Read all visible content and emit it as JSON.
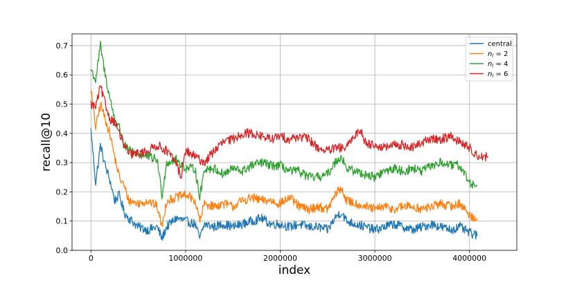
{
  "chart_data": {
    "type": "line",
    "title": "",
    "xlabel": "index",
    "ylabel": "recall@10",
    "xlim": [
      -200000,
      4500000
    ],
    "ylim": [
      0.0,
      0.74
    ],
    "xticks": [
      0,
      1000000,
      2000000,
      3000000,
      4000000
    ],
    "xtick_labels": [
      "0",
      "1000000",
      "2000000",
      "3000000",
      "4000000"
    ],
    "yticks": [
      0.0,
      0.1,
      0.2,
      0.3,
      0.4,
      0.5,
      0.6,
      0.7
    ],
    "ytick_labels": [
      "0.0",
      "0.1",
      "0.2",
      "0.3",
      "0.4",
      "0.5",
      "0.6",
      "0.7"
    ],
    "grid": true,
    "legend_position": "top-right",
    "series": [
      {
        "name": "central",
        "color": "#1f77b4",
        "x": [
          0,
          50000,
          100000,
          150000,
          200000,
          250000,
          300000,
          350000,
          400000,
          500000,
          600000,
          700000,
          750000,
          800000,
          900000,
          1000000,
          1100000,
          1150000,
          1200000,
          1300000,
          1400000,
          1500000,
          1600000,
          1700000,
          1800000,
          1900000,
          2000000,
          2100000,
          2200000,
          2300000,
          2400000,
          2500000,
          2600000,
          2650000,
          2700000,
          2800000,
          2900000,
          3000000,
          3100000,
          3200000,
          3300000,
          3400000,
          3500000,
          3600000,
          3700000,
          3800000,
          3900000,
          4000000,
          4080000
        ],
        "y": [
          0.41,
          0.23,
          0.36,
          0.29,
          0.24,
          0.17,
          0.19,
          0.13,
          0.11,
          0.08,
          0.07,
          0.08,
          0.04,
          0.08,
          0.11,
          0.1,
          0.09,
          0.04,
          0.09,
          0.08,
          0.09,
          0.08,
          0.09,
          0.1,
          0.11,
          0.09,
          0.09,
          0.08,
          0.09,
          0.08,
          0.08,
          0.07,
          0.12,
          0.13,
          0.1,
          0.09,
          0.08,
          0.07,
          0.08,
          0.09,
          0.08,
          0.07,
          0.08,
          0.09,
          0.08,
          0.07,
          0.08,
          0.06,
          0.05
        ]
      },
      {
        "name": "n_l = 2",
        "label_base": "n",
        "label_sub": "l",
        "label_rest": " = 2",
        "color": "#ff7f0e",
        "x": [
          0,
          50000,
          100000,
          150000,
          200000,
          250000,
          300000,
          350000,
          400000,
          500000,
          600000,
          700000,
          750000,
          800000,
          900000,
          1000000,
          1100000,
          1150000,
          1200000,
          1300000,
          1400000,
          1500000,
          1600000,
          1700000,
          1800000,
          1900000,
          2000000,
          2100000,
          2200000,
          2300000,
          2400000,
          2500000,
          2600000,
          2650000,
          2700000,
          2800000,
          2900000,
          3000000,
          3100000,
          3200000,
          3300000,
          3400000,
          3500000,
          3600000,
          3700000,
          3800000,
          3900000,
          4000000,
          4080000
        ],
        "y": [
          0.55,
          0.42,
          0.5,
          0.45,
          0.4,
          0.32,
          0.25,
          0.22,
          0.17,
          0.16,
          0.17,
          0.15,
          0.08,
          0.17,
          0.18,
          0.19,
          0.17,
          0.1,
          0.16,
          0.15,
          0.16,
          0.15,
          0.17,
          0.18,
          0.17,
          0.17,
          0.16,
          0.18,
          0.15,
          0.14,
          0.15,
          0.14,
          0.2,
          0.21,
          0.17,
          0.16,
          0.15,
          0.14,
          0.15,
          0.14,
          0.15,
          0.15,
          0.14,
          0.15,
          0.16,
          0.15,
          0.16,
          0.12,
          0.11
        ]
      },
      {
        "name": "n_l = 4",
        "label_base": "n",
        "label_sub": "l",
        "label_rest": " = 4",
        "color": "#2ca02c",
        "x": [
          0,
          50000,
          100000,
          150000,
          200000,
          250000,
          300000,
          350000,
          400000,
          500000,
          600000,
          700000,
          750000,
          800000,
          900000,
          1000000,
          1100000,
          1150000,
          1200000,
          1300000,
          1400000,
          1500000,
          1600000,
          1700000,
          1800000,
          1900000,
          2000000,
          2100000,
          2200000,
          2300000,
          2400000,
          2500000,
          2600000,
          2650000,
          2700000,
          2800000,
          2900000,
          3000000,
          3100000,
          3200000,
          3300000,
          3400000,
          3500000,
          3600000,
          3700000,
          3800000,
          3900000,
          4000000,
          4080000
        ],
        "y": [
          0.62,
          0.58,
          0.7,
          0.6,
          0.52,
          0.45,
          0.42,
          0.36,
          0.34,
          0.33,
          0.32,
          0.31,
          0.19,
          0.3,
          0.31,
          0.28,
          0.28,
          0.18,
          0.28,
          0.28,
          0.26,
          0.28,
          0.27,
          0.29,
          0.3,
          0.29,
          0.29,
          0.27,
          0.27,
          0.25,
          0.25,
          0.26,
          0.31,
          0.32,
          0.28,
          0.27,
          0.26,
          0.25,
          0.27,
          0.28,
          0.27,
          0.28,
          0.27,
          0.29,
          0.3,
          0.29,
          0.29,
          0.23,
          0.22
        ]
      },
      {
        "name": "n_l = 6",
        "label_base": "n",
        "label_sub": "l",
        "label_rest": " = 6",
        "color": "#d62728",
        "x": [
          0,
          50000,
          100000,
          150000,
          200000,
          250000,
          300000,
          350000,
          400000,
          500000,
          600000,
          700000,
          750000,
          800000,
          900000,
          950000,
          1000000,
          1100000,
          1200000,
          1300000,
          1400000,
          1500000,
          1600000,
          1700000,
          1800000,
          1900000,
          2000000,
          2100000,
          2200000,
          2300000,
          2400000,
          2500000,
          2600000,
          2700000,
          2800000,
          2850000,
          2900000,
          3000000,
          3100000,
          3200000,
          3300000,
          3400000,
          3500000,
          3600000,
          3700000,
          3800000,
          3900000,
          4000000,
          4100000,
          4200000
        ],
        "y": [
          0.5,
          0.49,
          0.56,
          0.5,
          0.45,
          0.44,
          0.4,
          0.36,
          0.33,
          0.33,
          0.34,
          0.36,
          0.35,
          0.34,
          0.3,
          0.25,
          0.34,
          0.32,
          0.3,
          0.34,
          0.37,
          0.38,
          0.4,
          0.4,
          0.39,
          0.38,
          0.39,
          0.38,
          0.39,
          0.38,
          0.35,
          0.34,
          0.35,
          0.35,
          0.4,
          0.41,
          0.37,
          0.36,
          0.35,
          0.36,
          0.36,
          0.35,
          0.37,
          0.38,
          0.38,
          0.39,
          0.37,
          0.35,
          0.32,
          0.32
        ]
      }
    ]
  }
}
